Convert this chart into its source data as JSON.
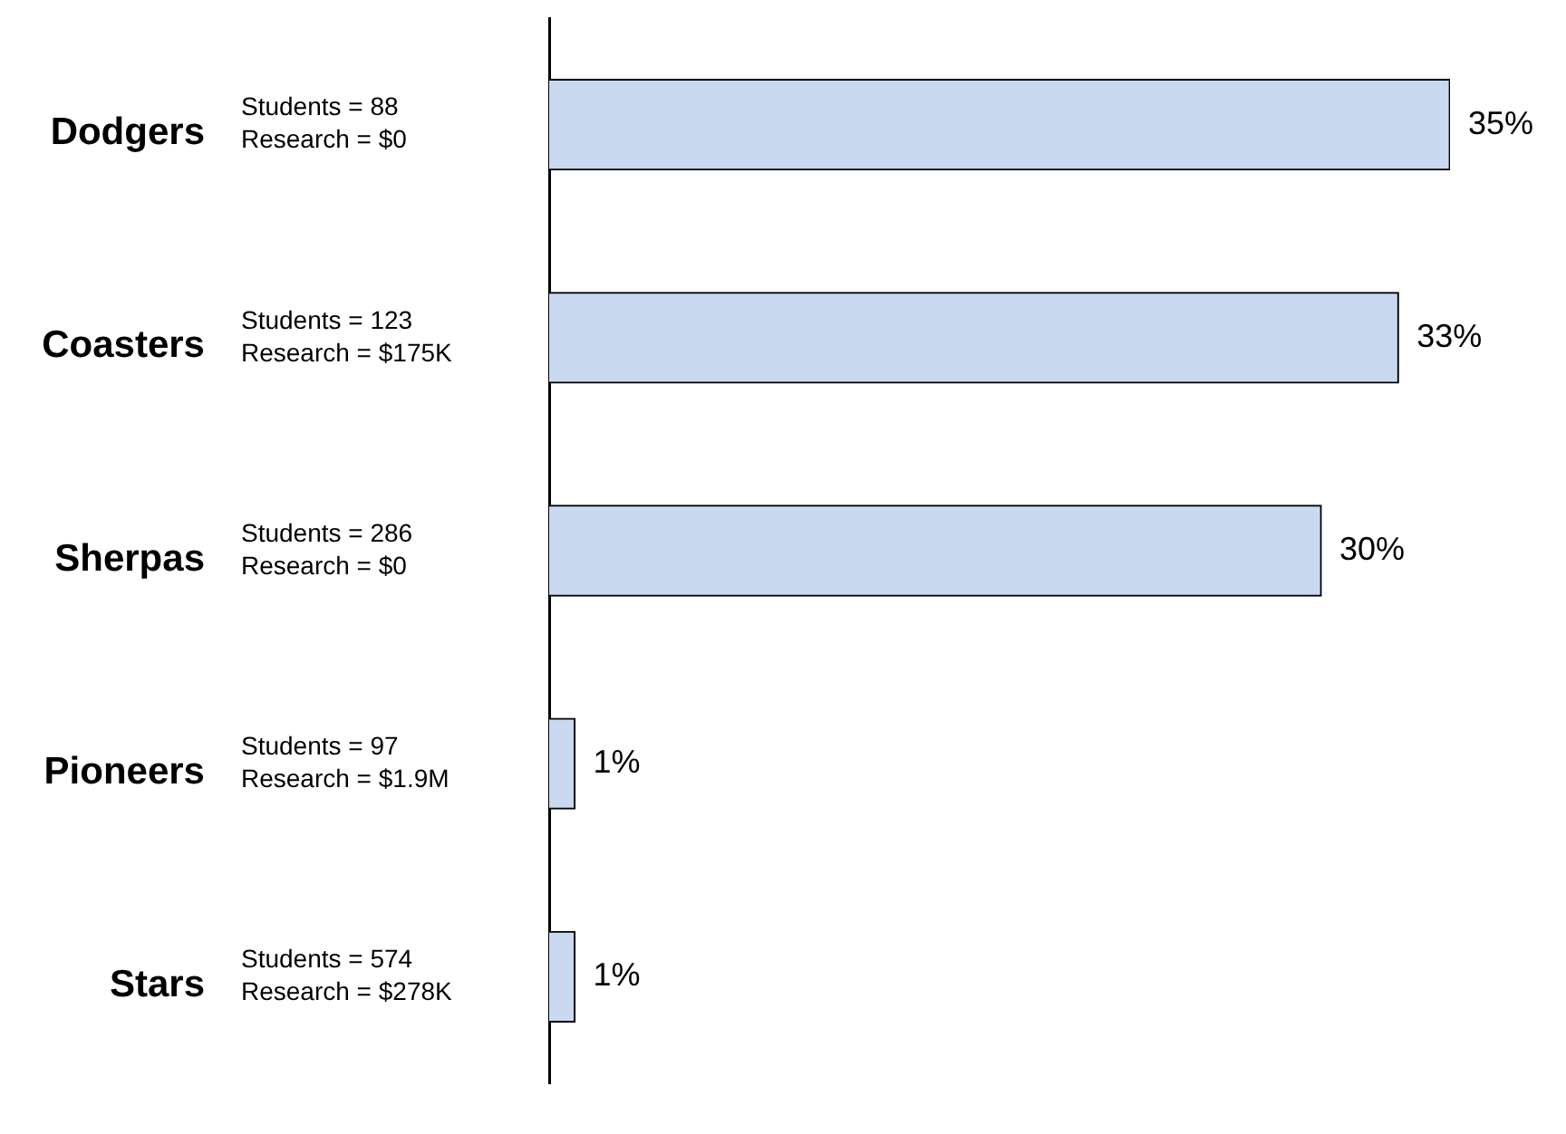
{
  "chart_data": {
    "type": "bar",
    "orientation": "horizontal",
    "categories": [
      "Dodgers",
      "Coasters",
      "Sherpas",
      "Pioneers",
      "Stars"
    ],
    "values": [
      35,
      33,
      30,
      1,
      1
    ],
    "color": "#c9d9f0",
    "value_labels": [
      "35%",
      "33%",
      "30%",
      "1%",
      "1%"
    ],
    "annotations": [
      "Students = 88\nResearch = $0",
      "Students = 123\nResearch = $175K",
      "Students = 286\nResearch = $0",
      "Students = 97\nResearch = $1.9M",
      "Students = 574\nResearch = $278K"
    ],
    "grid": false,
    "legend": false
  }
}
